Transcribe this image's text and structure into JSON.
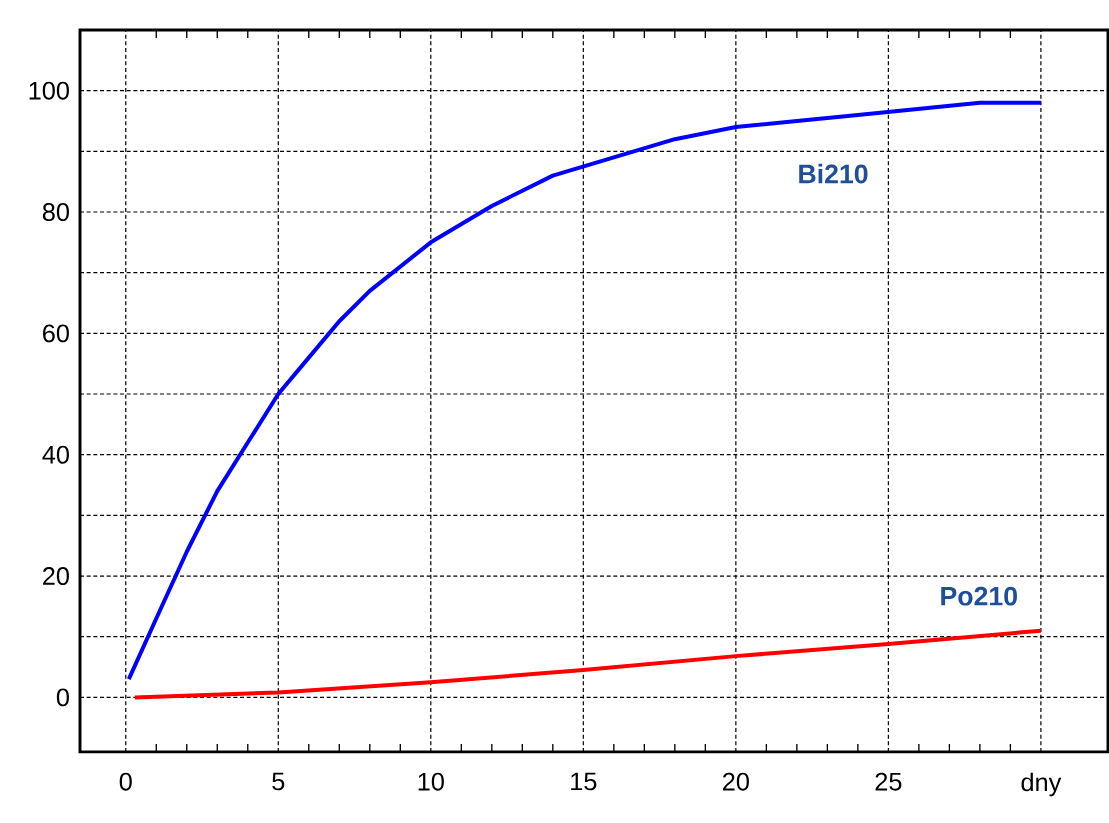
{
  "chart_data": {
    "type": "line",
    "x": [
      0.1,
      1,
      2,
      3,
      4,
      5,
      6,
      7,
      8,
      9,
      10,
      12,
      14,
      16,
      18,
      20,
      22,
      24,
      26,
      28,
      30
    ],
    "series": [
      {
        "name": "Bi210",
        "color": "#0000ff",
        "values": [
          3,
          13,
          24,
          34,
          42,
          50,
          56,
          62,
          67,
          71,
          75,
          81,
          86,
          89,
          92,
          94,
          95,
          96,
          97,
          98,
          98
        ]
      },
      {
        "name": "Po210",
        "color": "#ff0000",
        "x": [
          0.3,
          5,
          10,
          15,
          20,
          25,
          30
        ],
        "values": [
          0,
          0.8,
          2.5,
          4.5,
          6.8,
          8.8,
          11
        ]
      }
    ],
    "xlim": [
      -1.5,
      32.2
    ],
    "ylim": [
      -9,
      110
    ],
    "xticks": [
      0,
      5,
      10,
      15,
      20,
      25,
      {
        "value": 30,
        "label": "dny"
      }
    ],
    "yticks": [
      0,
      {
        "value": 10,
        "label": null
      },
      20,
      {
        "value": 30,
        "label": null
      },
      40,
      {
        "value": 50,
        "label": null
      },
      60,
      {
        "value": 70,
        "label": null
      },
      80,
      {
        "value": 90,
        "label": null
      },
      100
    ],
    "grid": true
  }
}
